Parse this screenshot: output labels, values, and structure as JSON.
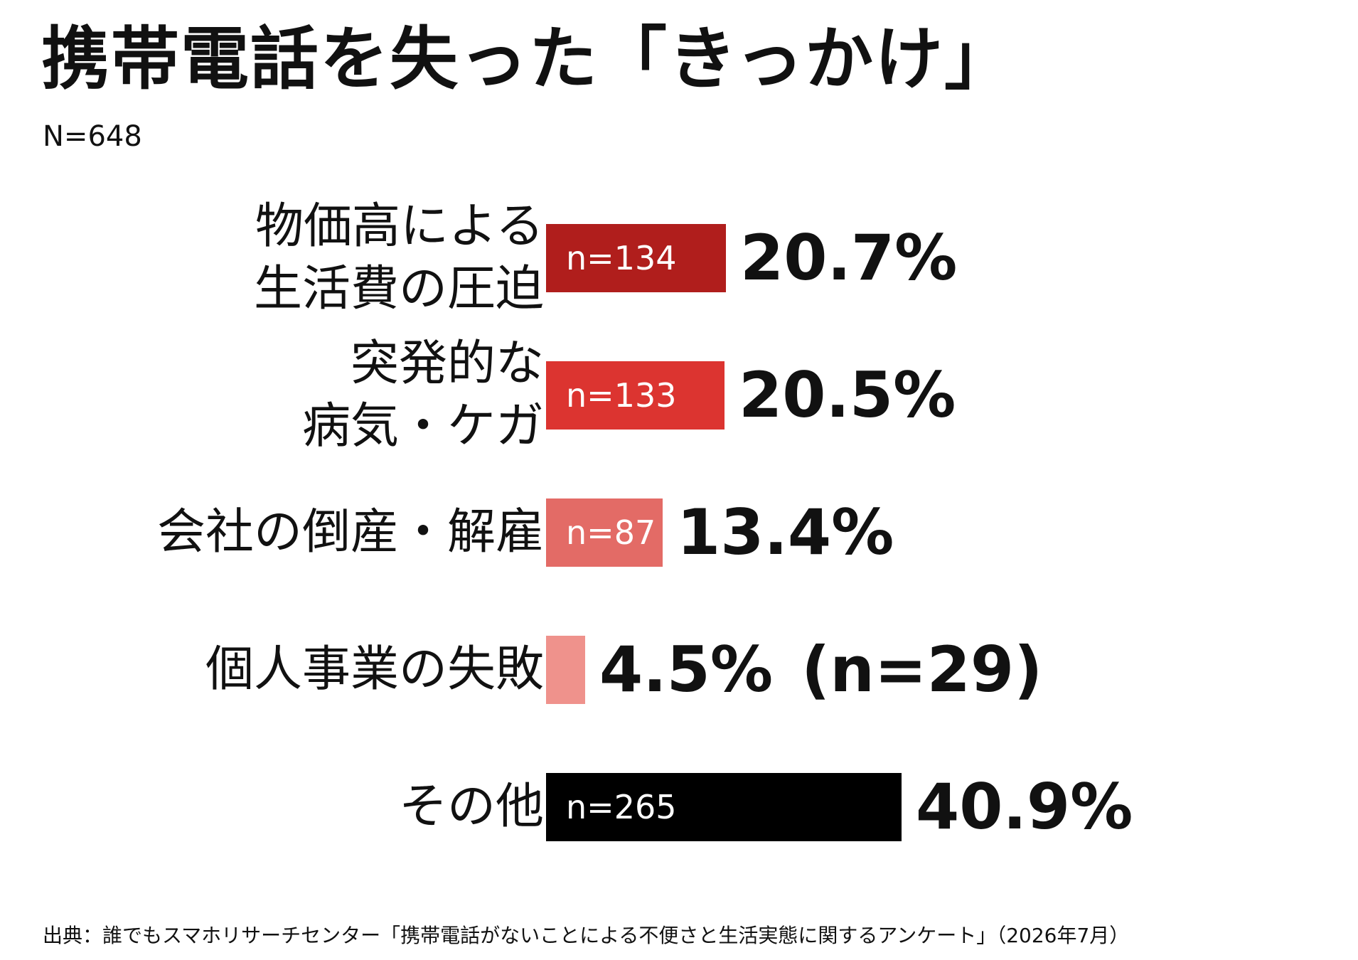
{
  "title": "携帯電話を失った「きっかけ」",
  "n_total": "N=648",
  "source": "出典：誰でもスマホリサーチセンター「携帯電話がないことによる不便さと生活実態に関するアンケート」（2026年7月）",
  "chart_data": {
    "type": "bar",
    "orientation": "horizontal",
    "title": "携帯電話を失った「きっかけ」",
    "categories": [
      [
        "物価高による",
        "生活費の圧迫"
      ],
      [
        "突発的な",
        "病気・ケガ"
      ],
      [
        "会社の倒産・解雇"
      ],
      [
        "個人事業の失敗"
      ],
      [
        "その他"
      ]
    ],
    "values": [
      20.7,
      20.5,
      13.4,
      4.5,
      40.9
    ],
    "value_labels": [
      "20.7%",
      "20.5%",
      "13.4%",
      "4.5%",
      "40.9%"
    ],
    "n_labels": [
      "n=134",
      "n=133",
      "n=87",
      "n=29",
      "n=265"
    ],
    "n_label_placement": [
      "inside",
      "inside",
      "inside",
      "outside",
      "inside"
    ],
    "outside_n_text": [
      "",
      "",
      "",
      "(n=29)",
      ""
    ],
    "colors": [
      "#b01e1c",
      "#dc3430",
      "#e36b66",
      "#ef928c",
      "#000000"
    ],
    "grid": false,
    "xlabel": "",
    "ylabel": ""
  }
}
